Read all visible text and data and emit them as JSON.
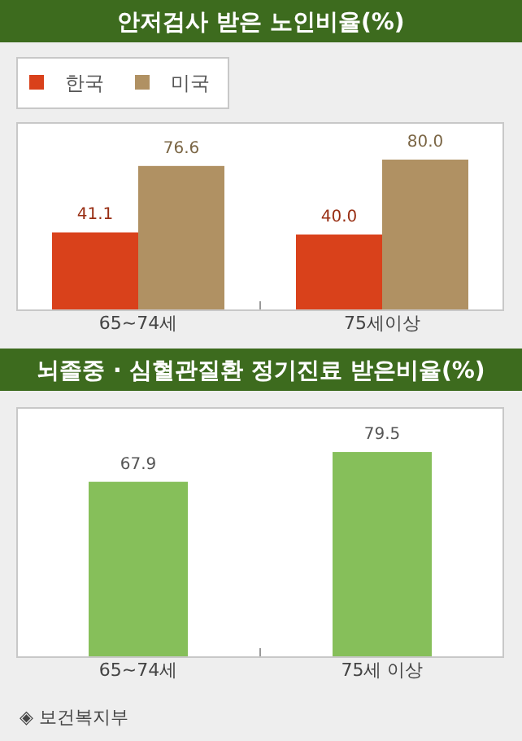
{
  "chart_data": [
    {
      "type": "bar",
      "title": "안저검사 받은 노인비율(%)",
      "categories": [
        "65~74세",
        "75세이상"
      ],
      "series": [
        {
          "name": "한국",
          "color": "#d9411b",
          "values": [
            41.1,
            40.0
          ],
          "value_labels": [
            "41.1",
            "40.0"
          ]
        },
        {
          "name": "미국",
          "color": "#b09163",
          "values": [
            76.6,
            80.0
          ],
          "value_labels": [
            "76.6",
            "80.0"
          ]
        }
      ],
      "legend": "top left"
    },
    {
      "type": "bar",
      "title": "뇌졸중 · 심혈관질환 정기진료 받은비율(%)",
      "categories": [
        "65~74세",
        "75세 이상"
      ],
      "values": [
        67.9,
        79.5
      ],
      "color": "#86bf5a",
      "data_labels": true,
      "legend": false,
      "annotations": [
        "◈ 보건복지부"
      ]
    }
  ]
}
